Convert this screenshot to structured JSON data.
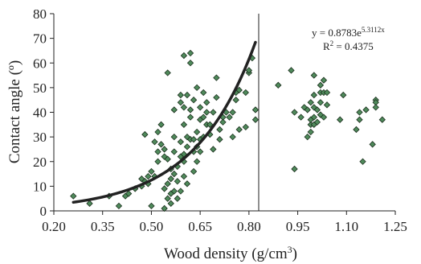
{
  "chart_data": {
    "type": "scatter",
    "title": "",
    "xlabel": "Wood density (g/cm",
    "xlabel_sup": "3",
    "xlabel_tail": ")",
    "ylabel": "Contact angle (º)",
    "xlim": [
      0.2,
      1.25
    ],
    "ylim": [
      0,
      80
    ],
    "x_ticks": [
      0.2,
      0.35,
      0.5,
      0.65,
      0.8,
      0.95,
      1.1,
      1.25
    ],
    "x_tick_labels": [
      "0.20",
      "0.35",
      "0.50",
      "0.65",
      "0.80",
      "0.95",
      "1.10",
      "1.25"
    ],
    "y_ticks": [
      0,
      10,
      20,
      30,
      40,
      50,
      60,
      70,
      80
    ],
    "y_tick_labels": [
      "0",
      "10",
      "20",
      "30",
      "40",
      "50",
      "60",
      "70",
      "80"
    ],
    "grid": false,
    "legend": "none",
    "vertical_line_x": 0.83,
    "marker_color": "#4f8a5b",
    "marker_edge": "#1a2e1c",
    "curve_color": "#222222",
    "annotation": {
      "eq_prefix": "y = 0.8783e",
      "eq_exp": "5.3112x",
      "r2_label": "R",
      "r2_sup": "2",
      "r2_value": " = 0.4375"
    },
    "trendline": {
      "type": "exponential",
      "a": 0.8783,
      "b": 5.3112,
      "x_start": 0.26,
      "x_end": 0.82
    },
    "series": [
      {
        "points": [
          [
            0.26,
            6
          ],
          [
            0.31,
            3
          ],
          [
            0.37,
            6
          ],
          [
            0.4,
            2
          ],
          [
            0.42,
            6
          ],
          [
            0.43,
            7
          ],
          [
            0.45,
            9
          ],
          [
            0.47,
            13
          ],
          [
            0.47,
            10
          ],
          [
            0.48,
            12
          ],
          [
            0.48,
            31
          ],
          [
            0.49,
            11
          ],
          [
            0.49,
            14
          ],
          [
            0.5,
            2
          ],
          [
            0.5,
            16
          ],
          [
            0.51,
            14
          ],
          [
            0.51,
            28
          ],
          [
            0.52,
            24
          ],
          [
            0.52,
            20
          ],
          [
            0.52,
            32
          ],
          [
            0.53,
            35
          ],
          [
            0.53,
            27
          ],
          [
            0.54,
            25
          ],
          [
            0.54,
            22
          ],
          [
            0.54,
            9
          ],
          [
            0.54,
            1
          ],
          [
            0.55,
            11
          ],
          [
            0.55,
            21
          ],
          [
            0.55,
            56
          ],
          [
            0.55,
            5
          ],
          [
            0.56,
            17
          ],
          [
            0.56,
            13
          ],
          [
            0.56,
            7
          ],
          [
            0.56,
            3
          ],
          [
            0.57,
            15
          ],
          [
            0.57,
            30
          ],
          [
            0.57,
            41
          ],
          [
            0.57,
            24
          ],
          [
            0.57,
            8
          ],
          [
            0.58,
            18
          ],
          [
            0.58,
            5
          ],
          [
            0.58,
            12
          ],
          [
            0.59,
            22
          ],
          [
            0.59,
            28
          ],
          [
            0.59,
            47
          ],
          [
            0.59,
            44
          ],
          [
            0.59,
            8
          ],
          [
            0.6,
            20
          ],
          [
            0.6,
            63
          ],
          [
            0.6,
            23
          ],
          [
            0.6,
            35
          ],
          [
            0.6,
            14
          ],
          [
            0.6,
            42
          ],
          [
            0.61,
            26
          ],
          [
            0.61,
            30
          ],
          [
            0.61,
            11
          ],
          [
            0.61,
            47
          ],
          [
            0.62,
            64
          ],
          [
            0.62,
            60
          ],
          [
            0.62,
            38
          ],
          [
            0.62,
            41
          ],
          [
            0.62,
            29
          ],
          [
            0.63,
            24
          ],
          [
            0.63,
            29
          ],
          [
            0.63,
            16
          ],
          [
            0.63,
            45
          ],
          [
            0.64,
            20
          ],
          [
            0.64,
            26
          ],
          [
            0.64,
            50
          ],
          [
            0.64,
            32
          ],
          [
            0.65,
            37
          ],
          [
            0.65,
            42
          ],
          [
            0.65,
            29
          ],
          [
            0.65,
            24
          ],
          [
            0.66,
            30
          ],
          [
            0.66,
            48
          ],
          [
            0.66,
            38
          ],
          [
            0.67,
            35
          ],
          [
            0.67,
            44
          ],
          [
            0.67,
            40
          ],
          [
            0.68,
            31
          ],
          [
            0.68,
            35
          ],
          [
            0.69,
            25
          ],
          [
            0.69,
            40
          ],
          [
            0.7,
            54
          ],
          [
            0.7,
            46
          ],
          [
            0.71,
            33
          ],
          [
            0.71,
            29
          ],
          [
            0.72,
            38
          ],
          [
            0.72,
            36
          ],
          [
            0.73,
            40
          ],
          [
            0.74,
            38
          ],
          [
            0.75,
            30
          ],
          [
            0.75,
            40
          ],
          [
            0.76,
            45
          ],
          [
            0.76,
            48
          ],
          [
            0.77,
            33
          ],
          [
            0.77,
            49
          ],
          [
            0.79,
            34
          ],
          [
            0.79,
            48
          ],
          [
            0.8,
            56
          ],
          [
            0.8,
            57
          ],
          [
            0.81,
            62
          ],
          [
            0.82,
            41
          ],
          [
            0.82,
            37
          ],
          [
            0.89,
            51
          ],
          [
            0.93,
            57
          ],
          [
            0.94,
            17
          ],
          [
            0.94,
            40
          ],
          [
            0.96,
            38
          ],
          [
            0.97,
            42
          ],
          [
            0.98,
            41
          ],
          [
            0.98,
            30
          ],
          [
            0.99,
            32
          ],
          [
            0.99,
            35
          ],
          [
            0.99,
            44
          ],
          [
            0.99,
            37
          ],
          [
            1.0,
            55
          ],
          [
            1.0,
            47
          ],
          [
            1.0,
            42
          ],
          [
            1.0,
            35
          ],
          [
            1.0,
            38
          ],
          [
            1.01,
            36
          ],
          [
            1.01,
            41
          ],
          [
            1.02,
            48
          ],
          [
            1.02,
            51
          ],
          [
            1.02,
            44
          ],
          [
            1.02,
            39
          ],
          [
            1.03,
            53
          ],
          [
            1.03,
            48
          ],
          [
            1.03,
            38
          ],
          [
            1.04,
            48
          ],
          [
            1.04,
            43
          ],
          [
            1.08,
            37
          ],
          [
            1.09,
            47
          ],
          [
            1.13,
            33
          ],
          [
            1.14,
            37
          ],
          [
            1.14,
            40
          ],
          [
            1.15,
            20
          ],
          [
            1.16,
            41
          ],
          [
            1.18,
            27
          ],
          [
            1.19,
            45
          ],
          [
            1.19,
            44
          ],
          [
            1.19,
            42
          ],
          [
            1.21,
            37
          ]
        ]
      }
    ]
  }
}
